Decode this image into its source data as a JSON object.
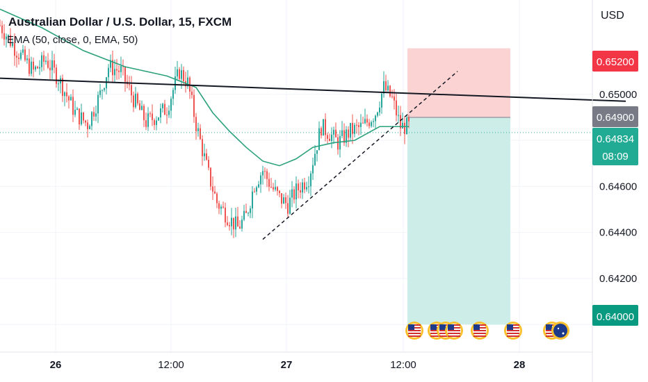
{
  "header": {
    "symbol_title": "Australian Dollar / U.S. Dollar, 15, FXCM",
    "indicator_label": "EMA (50, close, 0, EMA, 50)",
    "currency": "USD"
  },
  "price_badges": {
    "stop": "0.65200",
    "entry": "0.64900",
    "last": "0.64834",
    "countdown": "08:09",
    "target": "0.64000"
  },
  "colors": {
    "up": "#26a69a",
    "down": "#ef5350",
    "ema": "#2aa17c",
    "stop_zone": "#fbd3d2",
    "target_zone": "#cdeee8",
    "stop_badge": "#f23645",
    "entry_badge": "#787b86",
    "last_badge": "#22ab94",
    "target_badge": "#089981"
  },
  "icons": [
    "us-flag-event-icon",
    "us-flag-event-icon",
    "us-flag-event-icon",
    "us-flag-event-icon",
    "us-flag-event-icon",
    "us-flag-event-icon",
    "us-flag-event-icon",
    "au-flag-event-icon"
  ],
  "chart_data": {
    "type": "candlestick",
    "y_ticks": [
      "0.65000",
      "0.64600",
      "0.64400",
      "0.64200"
    ],
    "x_ticks": [
      "26",
      "12:00",
      "27",
      "12:00",
      "28"
    ],
    "y_range": [
      0.6388,
      0.6541
    ],
    "anchors": [
      [
        0,
        0.653
      ],
      [
        8,
        0.6519
      ],
      [
        16,
        0.651
      ],
      [
        22,
        0.6515
      ],
      [
        28,
        0.6507
      ],
      [
        36,
        0.6492
      ],
      [
        42,
        0.6487
      ],
      [
        48,
        0.65
      ],
      [
        52,
        0.6512
      ],
      [
        58,
        0.651
      ],
      [
        64,
        0.6498
      ],
      [
        70,
        0.6488
      ],
      [
        74,
        0.649
      ],
      [
        80,
        0.6494
      ],
      [
        86,
        0.651
      ],
      [
        90,
        0.6505
      ],
      [
        94,
        0.6487
      ],
      [
        100,
        0.6465
      ],
      [
        104,
        0.6453
      ],
      [
        110,
        0.6446
      ],
      [
        114,
        0.6442
      ],
      [
        118,
        0.6447
      ],
      [
        122,
        0.6461
      ],
      [
        126,
        0.6467
      ],
      [
        130,
        0.646
      ],
      [
        134,
        0.6455
      ],
      [
        138,
        0.6452
      ],
      [
        142,
        0.6458
      ],
      [
        148,
        0.6464
      ],
      [
        154,
        0.6486
      ],
      [
        158,
        0.6483
      ],
      [
        162,
        0.6479
      ],
      [
        168,
        0.6484
      ],
      [
        174,
        0.6486
      ],
      [
        180,
        0.6492
      ],
      [
        184,
        0.6503
      ],
      [
        188,
        0.6498
      ],
      [
        192,
        0.6486
      ],
      [
        196,
        0.6486
      ]
    ],
    "ema": [
      [
        0,
        0.6537
      ],
      [
        20,
        0.6529
      ],
      [
        40,
        0.6519
      ],
      [
        60,
        0.6512
      ],
      [
        80,
        0.6508
      ],
      [
        94,
        0.6503
      ],
      [
        102,
        0.6492
      ],
      [
        110,
        0.6484
      ],
      [
        118,
        0.6477
      ],
      [
        126,
        0.6471
      ],
      [
        134,
        0.6469
      ],
      [
        142,
        0.6472
      ],
      [
        150,
        0.6477
      ],
      [
        160,
        0.6479
      ],
      [
        170,
        0.648
      ],
      [
        182,
        0.6486
      ],
      [
        196,
        0.6486
      ]
    ],
    "trendline_resistance": [
      [
        0,
        0.6507
      ],
      [
        300,
        0.6497
      ]
    ],
    "trendline_support": [
      [
        118,
        0.6437
      ],
      [
        210,
        0.651
      ]
    ],
    "long_short_position": {
      "entry": 0.649,
      "stop": 0.652,
      "target": 0.64,
      "from_bar": 190,
      "to_bar": 240
    },
    "last_price": 0.64834
  }
}
